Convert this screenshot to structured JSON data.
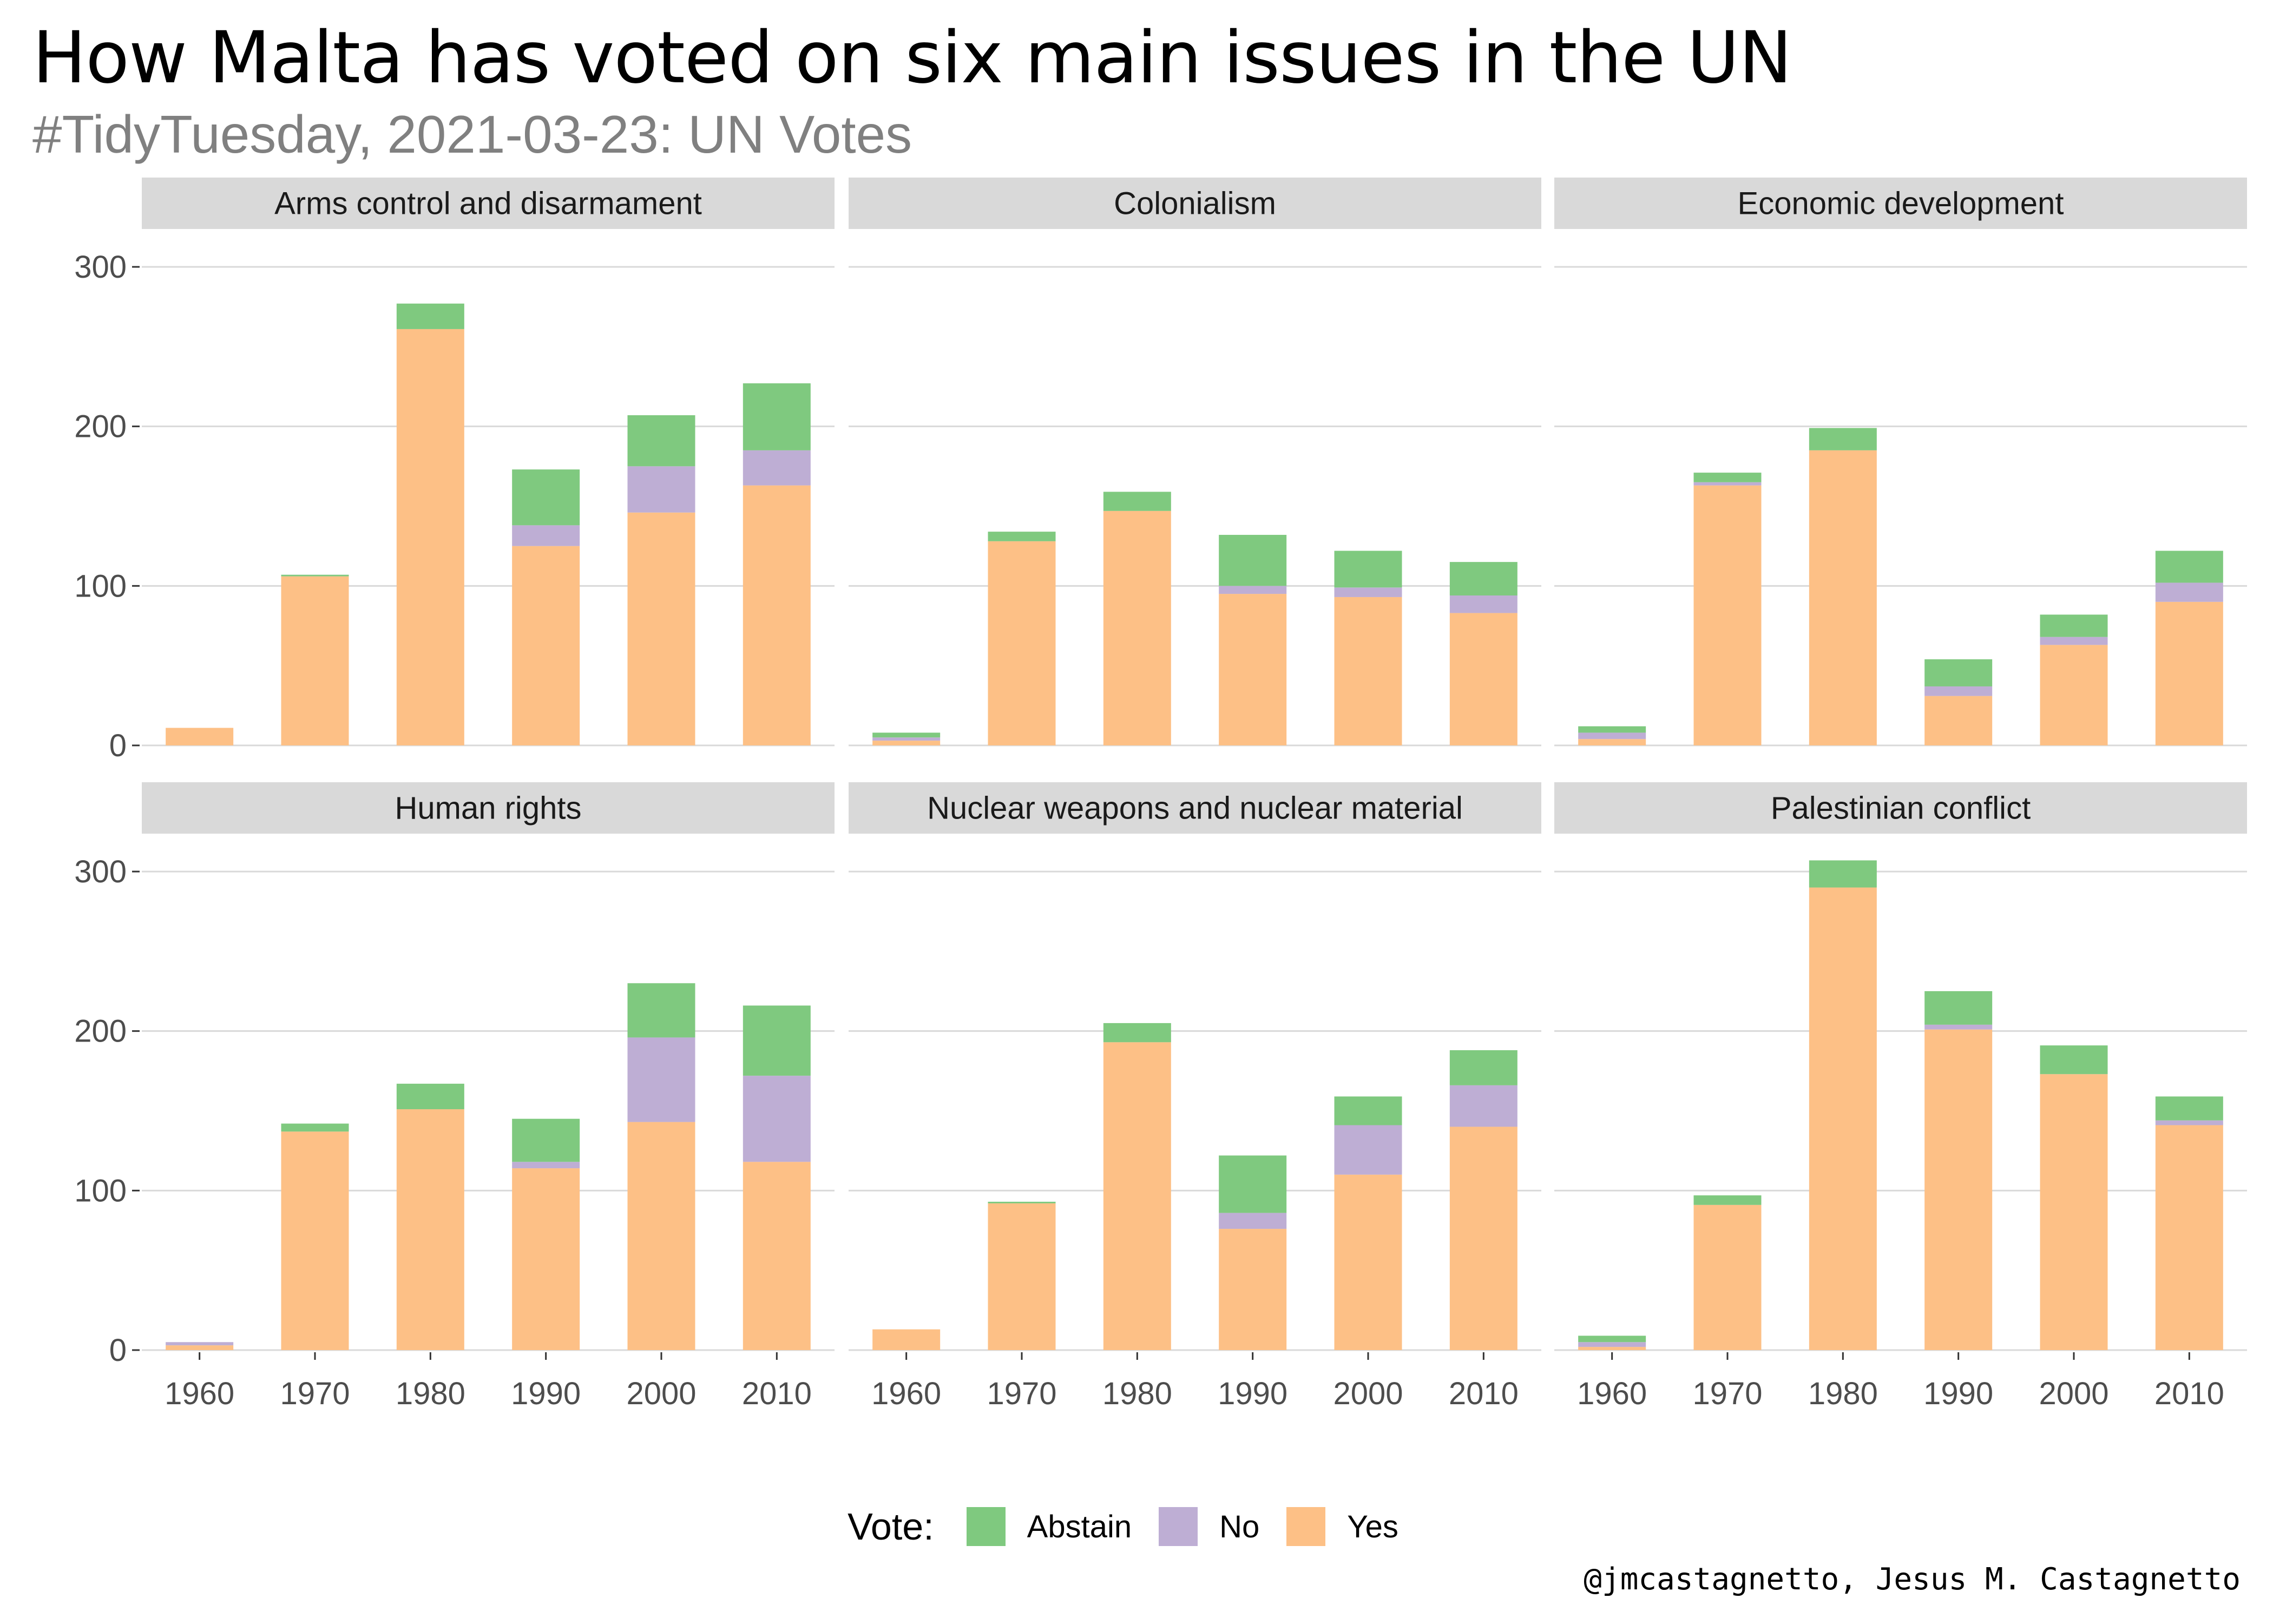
{
  "title": "How Malta has voted on six main issues in the UN",
  "subtitle": "#TidyTuesday, 2021-03-23: UN Votes",
  "caption": "@jmcastagnetto, Jesus M. Castagnetto",
  "legend": {
    "title": "Vote:",
    "items": [
      {
        "label": "Abstain",
        "color": "#7fc97f"
      },
      {
        "label": "No",
        "color": "#beaed4"
      },
      {
        "label": "Yes",
        "color": "#fdc086"
      }
    ]
  },
  "chart_data": {
    "type": "bar",
    "stacked": true,
    "facets": [
      "Arms control and disarmament",
      "Colonialism",
      "Economic development",
      "Human rights",
      "Nuclear weapons and nuclear material",
      "Palestinian conflict"
    ],
    "categories": [
      "1960",
      "1970",
      "1980",
      "1990",
      "2000",
      "2010"
    ],
    "ylim": [
      0,
      320
    ],
    "yticks": [
      0,
      100,
      200,
      300
    ],
    "grid": true,
    "legend_position": "bottom",
    "stack_order": [
      "Yes",
      "No",
      "Abstain"
    ],
    "panels": [
      {
        "facet": "Arms control and disarmament",
        "series": [
          {
            "name": "Yes",
            "values": [
              11,
              106,
              261,
              125,
              146,
              163
            ]
          },
          {
            "name": "No",
            "values": [
              0,
              0,
              0,
              13,
              29,
              22
            ]
          },
          {
            "name": "Abstain",
            "values": [
              0,
              1,
              16,
              35,
              32,
              42
            ]
          }
        ]
      },
      {
        "facet": "Colonialism",
        "series": [
          {
            "name": "Yes",
            "values": [
              3,
              128,
              147,
              95,
              93,
              83
            ]
          },
          {
            "name": "No",
            "values": [
              2,
              0,
              0,
              5,
              6,
              11
            ]
          },
          {
            "name": "Abstain",
            "values": [
              3,
              6,
              12,
              32,
              23,
              21
            ]
          }
        ]
      },
      {
        "facet": "Economic development",
        "series": [
          {
            "name": "Yes",
            "values": [
              4,
              163,
              185,
              31,
              63,
              90
            ]
          },
          {
            "name": "No",
            "values": [
              4,
              2,
              0,
              6,
              5,
              12
            ]
          },
          {
            "name": "Abstain",
            "values": [
              4,
              6,
              14,
              17,
              14,
              20
            ]
          }
        ]
      },
      {
        "facet": "Human rights",
        "series": [
          {
            "name": "Yes",
            "values": [
              3,
              137,
              151,
              114,
              143,
              118
            ]
          },
          {
            "name": "No",
            "values": [
              2,
              0,
              0,
              4,
              53,
              54
            ]
          },
          {
            "name": "Abstain",
            "values": [
              0,
              5,
              16,
              27,
              34,
              44
            ]
          }
        ]
      },
      {
        "facet": "Nuclear weapons and nuclear material",
        "series": [
          {
            "name": "Yes",
            "values": [
              13,
              92,
              193,
              76,
              110,
              140
            ]
          },
          {
            "name": "No",
            "values": [
              0,
              0,
              0,
              10,
              31,
              26
            ]
          },
          {
            "name": "Abstain",
            "values": [
              0,
              1,
              12,
              36,
              18,
              22
            ]
          }
        ]
      },
      {
        "facet": "Palestinian conflict",
        "series": [
          {
            "name": "Yes",
            "values": [
              2,
              91,
              290,
              201,
              173,
              141
            ]
          },
          {
            "name": "No",
            "values": [
              3,
              0,
              0,
              3,
              0,
              3
            ]
          },
          {
            "name": "Abstain",
            "values": [
              4,
              6,
              17,
              21,
              18,
              15
            ]
          }
        ]
      }
    ]
  }
}
